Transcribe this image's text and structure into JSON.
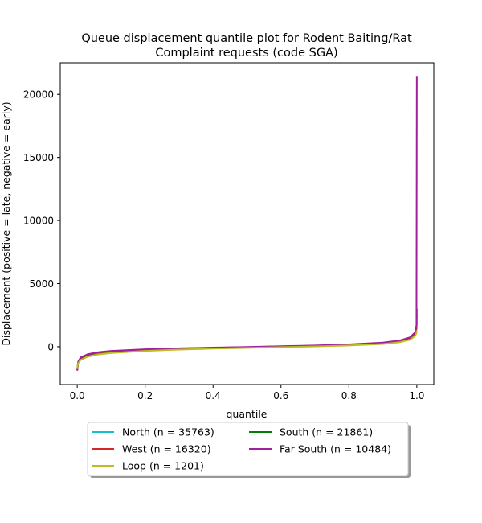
{
  "chart_data": {
    "type": "line",
    "title_lines": [
      "Queue displacement quantile plot for Rodent Baiting/Rat",
      "Complaint  requests (code SGA)"
    ],
    "xlabel": "quantile",
    "ylabel": "Displacement (positive = late, negative = early)",
    "xlim": [
      -0.05,
      1.05
    ],
    "ylim": [
      -3000,
      22500
    ],
    "x_ticks": [
      0.0,
      0.2,
      0.4,
      0.6,
      0.8,
      1.0
    ],
    "x_tick_labels": [
      "0.0",
      "0.2",
      "0.4",
      "0.6",
      "0.8",
      "1.0"
    ],
    "y_ticks": [
      0,
      5000,
      10000,
      15000,
      20000
    ],
    "y_tick_labels": [
      "0",
      "5000",
      "10000",
      "15000",
      "20000"
    ],
    "grid": false,
    "legend_position": "below plot, centered, two columns",
    "series": [
      {
        "name": "North (n = 35763)",
        "color": "#17becf",
        "points": [
          [
            0,
            -1800
          ],
          [
            0.003,
            -1200
          ],
          [
            0.01,
            -900
          ],
          [
            0.03,
            -650
          ],
          [
            0.06,
            -480
          ],
          [
            0.1,
            -370
          ],
          [
            0.2,
            -230
          ],
          [
            0.3,
            -150
          ],
          [
            0.4,
            -90
          ],
          [
            0.5,
            -40
          ],
          [
            0.6,
            20
          ],
          [
            0.7,
            80
          ],
          [
            0.8,
            160
          ],
          [
            0.9,
            300
          ],
          [
            0.95,
            460
          ],
          [
            0.98,
            700
          ],
          [
            0.995,
            1100
          ],
          [
            0.999,
            1500
          ],
          [
            1.0,
            2500
          ]
        ]
      },
      {
        "name": "South (n = 21861)",
        "color": "#008000",
        "points": [
          [
            0,
            -1850
          ],
          [
            0.003,
            -1250
          ],
          [
            0.01,
            -920
          ],
          [
            0.03,
            -660
          ],
          [
            0.06,
            -490
          ],
          [
            0.1,
            -375
          ],
          [
            0.2,
            -235
          ],
          [
            0.3,
            -152
          ],
          [
            0.4,
            -92
          ],
          [
            0.5,
            -42
          ],
          [
            0.6,
            18
          ],
          [
            0.7,
            78
          ],
          [
            0.8,
            158
          ],
          [
            0.9,
            295
          ],
          [
            0.95,
            450
          ],
          [
            0.98,
            690
          ],
          [
            0.995,
            1050
          ],
          [
            0.999,
            1450
          ],
          [
            1.0,
            3000
          ]
        ]
      },
      {
        "name": "West (n = 16320)",
        "color": "#d62728",
        "points": [
          [
            0,
            -1800
          ],
          [
            0.003,
            -1200
          ],
          [
            0.01,
            -880
          ],
          [
            0.03,
            -640
          ],
          [
            0.06,
            -470
          ],
          [
            0.1,
            -360
          ],
          [
            0.2,
            -225
          ],
          [
            0.3,
            -145
          ],
          [
            0.4,
            -85
          ],
          [
            0.5,
            -35
          ],
          [
            0.6,
            25
          ],
          [
            0.7,
            85
          ],
          [
            0.8,
            165
          ],
          [
            0.9,
            305
          ],
          [
            0.95,
            470
          ],
          [
            0.98,
            710
          ],
          [
            0.995,
            1100
          ],
          [
            0.999,
            1400
          ],
          [
            1.0,
            2000
          ]
        ]
      },
      {
        "name": "Far South (n = 10484)",
        "color": "#a020a0",
        "points": [
          [
            0,
            -1900
          ],
          [
            0.003,
            -1200
          ],
          [
            0.01,
            -850
          ],
          [
            0.03,
            -600
          ],
          [
            0.06,
            -440
          ],
          [
            0.1,
            -330
          ],
          [
            0.2,
            -200
          ],
          [
            0.3,
            -125
          ],
          [
            0.4,
            -70
          ],
          [
            0.5,
            -20
          ],
          [
            0.6,
            40
          ],
          [
            0.7,
            100
          ],
          [
            0.8,
            185
          ],
          [
            0.9,
            330
          ],
          [
            0.95,
            500
          ],
          [
            0.98,
            750
          ],
          [
            0.995,
            1150
          ],
          [
            0.999,
            1700
          ],
          [
            1.0,
            21400
          ]
        ]
      },
      {
        "name": "Loop (n = 1201)",
        "color": "#bcbd22",
        "points": [
          [
            0,
            -1700
          ],
          [
            0.003,
            -1300
          ],
          [
            0.01,
            -1050
          ],
          [
            0.03,
            -800
          ],
          [
            0.06,
            -620
          ],
          [
            0.1,
            -500
          ],
          [
            0.2,
            -330
          ],
          [
            0.3,
            -230
          ],
          [
            0.4,
            -150
          ],
          [
            0.5,
            -90
          ],
          [
            0.6,
            -30
          ],
          [
            0.7,
            30
          ],
          [
            0.8,
            100
          ],
          [
            0.9,
            220
          ],
          [
            0.95,
            360
          ],
          [
            0.98,
            560
          ],
          [
            0.995,
            850
          ],
          [
            0.999,
            1100
          ],
          [
            1.0,
            1300
          ]
        ]
      }
    ]
  }
}
